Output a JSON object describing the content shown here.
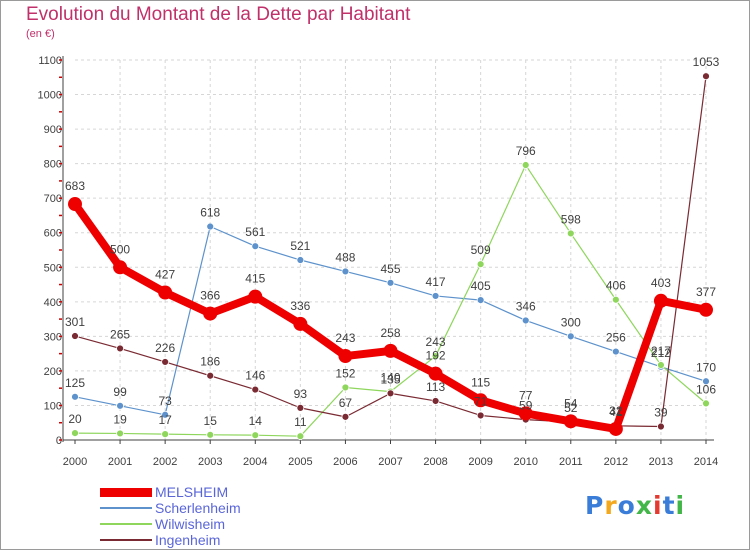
{
  "colors": {
    "title": "#c0306a",
    "axis": "#404040",
    "grid": "#d6d6d6",
    "label": "#404040",
    "legend_text": "#5a66d8",
    "tick_red": "#cc0000"
  },
  "logo": {
    "text": "Proxiti",
    "letter_colors": [
      "#3a7dd8",
      "#f2a91e",
      "#3a7dd8",
      "#43b649",
      "#e53a2f",
      "#3a7dd8",
      "#43b649"
    ]
  },
  "chart_data": {
    "type": "line",
    "title": "Evolution du Montant de la Dette par Habitant",
    "subtitle": "(en €)",
    "x": [
      "2000",
      "2001",
      "2002",
      "2003",
      "2004",
      "2005",
      "2006",
      "2007",
      "2008",
      "2009",
      "2010",
      "2011",
      "2012",
      "2013",
      "2014"
    ],
    "ylim": [
      0,
      1100
    ],
    "yticks": [
      0,
      100,
      200,
      300,
      400,
      500,
      600,
      700,
      800,
      900,
      1000,
      1100
    ],
    "grid": true,
    "legend_position": "bottom-left",
    "series": [
      {
        "name": "MELSHEIM",
        "color": "#ee0000",
        "width": 8,
        "marker": 7,
        "values": [
          683,
          500,
          427,
          366,
          415,
          336,
          243,
          258,
          192,
          115,
          77,
          54,
          32,
          403,
          377
        ]
      },
      {
        "name": "Scherlenheim",
        "color": "#5d92cc",
        "width": 1.2,
        "marker": 3.5,
        "values": [
          125,
          99,
          73,
          618,
          561,
          521,
          488,
          455,
          417,
          405,
          346,
          300,
          256,
          212,
          170
        ]
      },
      {
        "name": "Wilwisheim",
        "color": "#8ed65c",
        "width": 1.2,
        "marker": 3.5,
        "values": [
          20,
          19,
          17,
          15,
          14,
          11,
          152,
          140,
          243,
          509,
          796,
          598,
          406,
          217,
          106
        ]
      },
      {
        "name": "Ingenheim",
        "color": "#7a2a32",
        "width": 1.2,
        "marker": 3.5,
        "values": [
          301,
          265,
          226,
          186,
          146,
          93,
          67,
          135,
          113,
          71,
          59,
          52,
          41,
          39,
          1053
        ]
      }
    ]
  }
}
